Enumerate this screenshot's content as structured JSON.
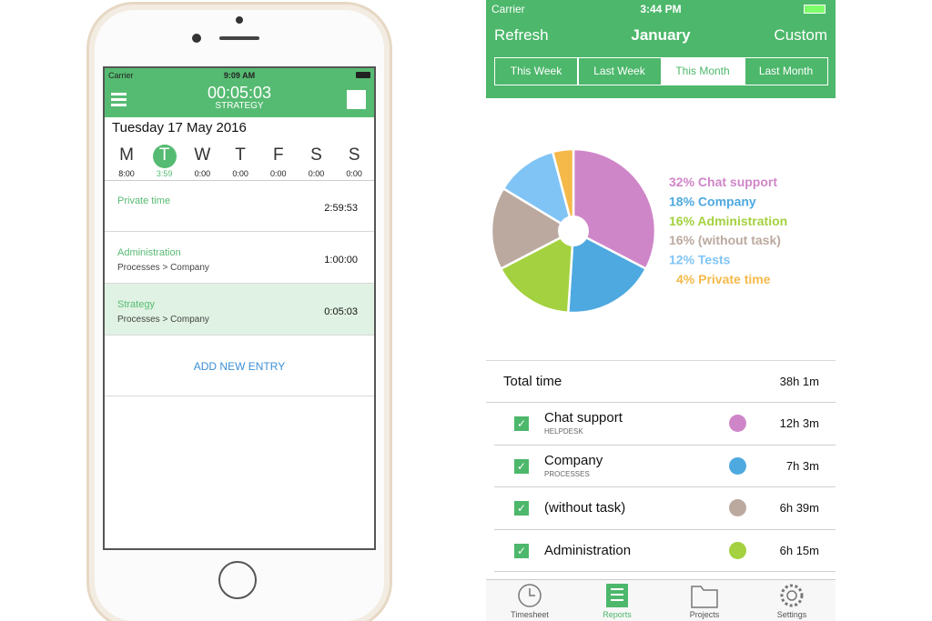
{
  "left_phone": {
    "carrier": "Carrier",
    "time": "9:09 AM",
    "timer": "00:05:03",
    "task": "STRATEGY",
    "date": "Tuesday 17 May 2016",
    "days": [
      {
        "letter": "M",
        "time": "8:00"
      },
      {
        "letter": "T",
        "time": "3:59"
      },
      {
        "letter": "W",
        "time": "0:00"
      },
      {
        "letter": "T",
        "time": "0:00"
      },
      {
        "letter": "F",
        "time": "0:00"
      },
      {
        "letter": "S",
        "time": "0:00"
      },
      {
        "letter": "S",
        "time": "0:00"
      }
    ],
    "entries": [
      {
        "name": "Private time",
        "duration": "2:59:53"
      },
      {
        "name": "Administration",
        "path": "Processes > Company",
        "duration": "1:00:00"
      },
      {
        "name": "Strategy",
        "path": "Processes > Company",
        "duration": "0:05:03"
      }
    ],
    "add_entry": "ADD NEW ENTRY"
  },
  "right_app": {
    "carrier": "Carrier",
    "time": "3:44 PM",
    "nav_left": "Refresh",
    "nav_title": "January",
    "nav_right": "Custom",
    "segments": [
      "This Week",
      "Last Week",
      "This Month",
      "Last Month"
    ]
  },
  "chart_data": {
    "type": "pie",
    "categories": [
      "Chat support",
      "Company",
      "Administration",
      "(without task)",
      "Tests",
      "Private time"
    ],
    "values": [
      32,
      18,
      16,
      16,
      12,
      4
    ],
    "value_labels": [
      "32%",
      "18%",
      "16%",
      "16%",
      "12%",
      "4%"
    ],
    "colors": [
      "#cf86c8",
      "#4ea9e0",
      "#a4d13f",
      "#bba99f",
      "#80c4f6",
      "#f5b94a"
    ]
  },
  "summary": {
    "total_label": "Total time",
    "total_value": "38h 1m",
    "rows": [
      {
        "name": "Chat support",
        "group": "HELPDESK",
        "time": "12h 3m",
        "color": "#cf86c8"
      },
      {
        "name": "Company",
        "group": "PROCESSES",
        "time": "7h 3m",
        "color": "#4ea9e0"
      },
      {
        "name": "(without task)",
        "time": "6h 39m",
        "color": "#bba99f"
      },
      {
        "name": "Administration",
        "time": "6h 15m",
        "color": "#a4d13f"
      }
    ]
  },
  "tabs": [
    "Timesheet",
    "Reports",
    "Projects",
    "Settings"
  ]
}
